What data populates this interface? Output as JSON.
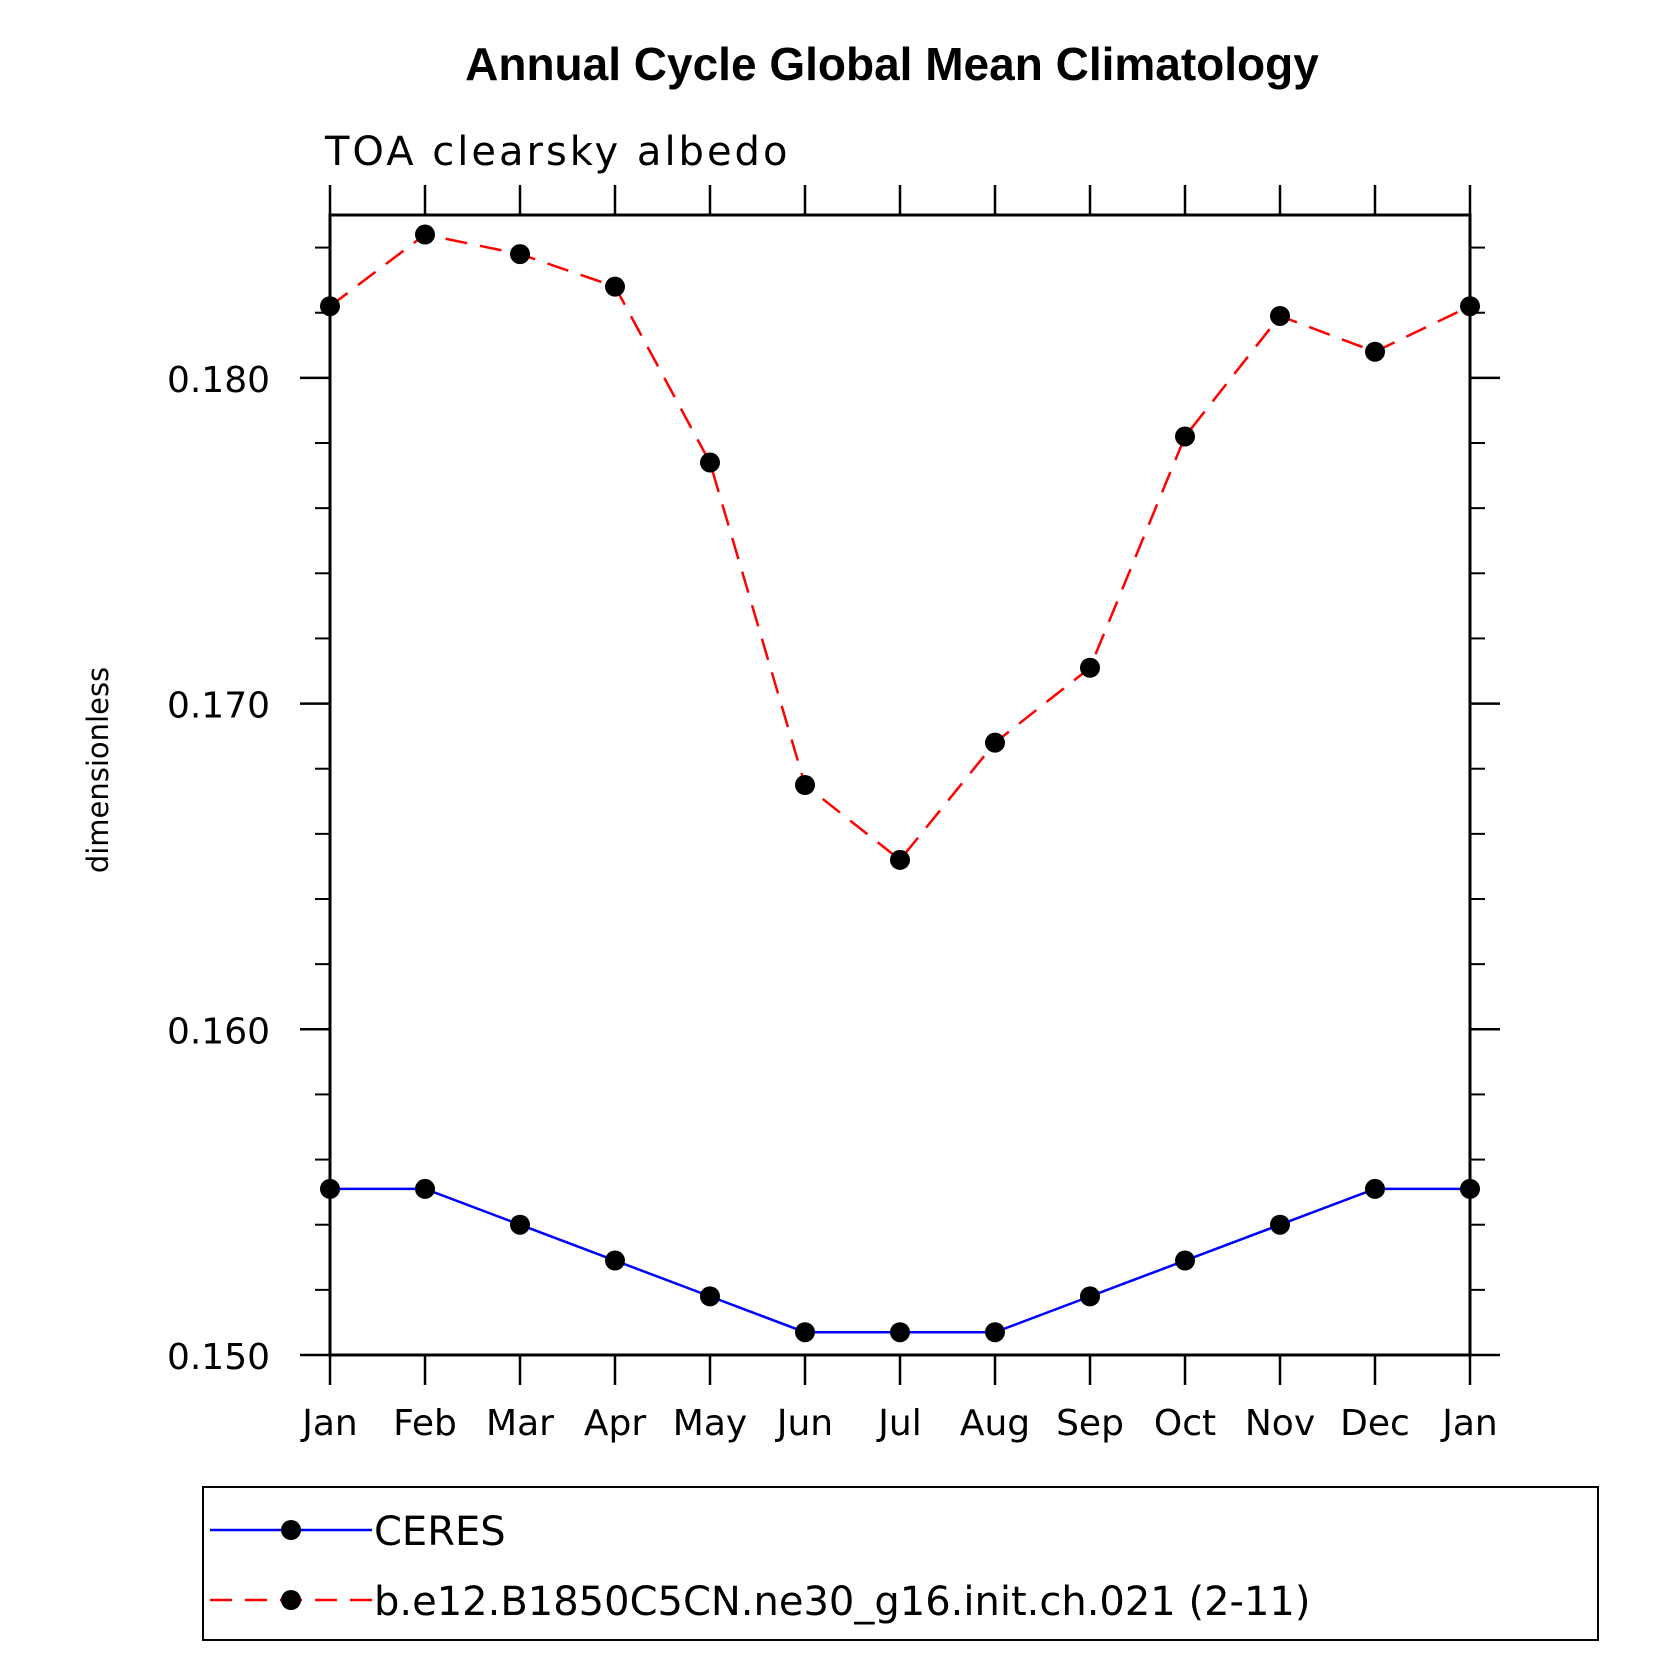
{
  "chart_data": {
    "type": "line",
    "title": "Annual Cycle Global Mean Climatology",
    "subtitle": "TOA clearsky albedo",
    "xlabel": "",
    "ylabel": "dimensionless",
    "categories": [
      "Jan",
      "Feb",
      "Mar",
      "Apr",
      "May",
      "Jun",
      "Jul",
      "Aug",
      "Sep",
      "Oct",
      "Nov",
      "Dec",
      "Jan"
    ],
    "ylim": [
      0.15,
      0.185
    ],
    "y_ticks": [
      0.15,
      0.16,
      0.17,
      0.18
    ],
    "y_tick_labels": [
      "0.150",
      "0.160",
      "0.170",
      "0.180"
    ],
    "y_minor_step": 0.002,
    "grid": false,
    "legend_position": "bottom",
    "series": [
      {
        "name": "CERES",
        "color": "#0000ff",
        "line_style": "solid",
        "marker": "filled-circle",
        "values": [
          0.1551,
          0.1551,
          0.154,
          0.1529,
          0.1518,
          0.1507,
          0.1507,
          0.1507,
          0.1518,
          0.1529,
          0.154,
          0.1551,
          0.1551
        ]
      },
      {
        "name": "b.e12.B1850C5CN.ne30_g16.init.ch.021 (2-11)",
        "color": "#ff0000",
        "line_style": "dashed",
        "marker": "filled-circle",
        "values": [
          0.1822,
          0.1844,
          0.1838,
          0.1828,
          0.1774,
          0.1675,
          0.1652,
          0.1688,
          0.1711,
          0.1782,
          0.1819,
          0.1808,
          0.1822
        ]
      }
    ]
  }
}
